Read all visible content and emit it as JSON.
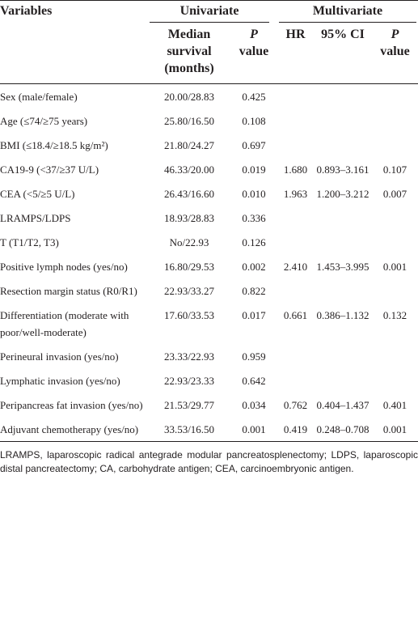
{
  "header": {
    "variables": "Variables",
    "univariate": "Univariate",
    "multivariate": "Multivariate",
    "columns": [
      {
        "text": "Median survival (months)"
      },
      {
        "italic": "P",
        "text": "value"
      },
      {
        "text": "HR"
      },
      {
        "text": "95% CI"
      },
      {
        "italic": "P",
        "text": "value"
      }
    ]
  },
  "table": {
    "rows": [
      [
        "Sex (male/female)",
        "20.00/28.83",
        "0.425",
        null,
        null,
        null
      ],
      [
        "Age (≤74/≥75 years)",
        "25.80/16.50",
        "0.108",
        null,
        null,
        null
      ],
      [
        "BMI (≤18.4/≥18.5 kg/m²)",
        "21.80/24.27",
        "0.697",
        null,
        null,
        null
      ],
      [
        "CA19-9 (<37/≥37 U/L)",
        "46.33/20.00",
        "0.019",
        "1.680",
        "0.893–3.161",
        "0.107"
      ],
      [
        "CEA (<5/≥5 U/L)",
        "26.43/16.60",
        "0.010",
        "1.963",
        "1.200–3.212",
        "0.007"
      ],
      [
        "LRAMPS/LDPS",
        "18.93/28.83",
        "0.336",
        null,
        null,
        null
      ],
      [
        "T (T1/T2, T3)",
        "No/22.93",
        "0.126",
        null,
        null,
        null
      ],
      [
        "Positive lymph nodes (yes/no)",
        "16.80/29.53",
        "0.002",
        "2.410",
        "1.453–3.995",
        "0.001"
      ],
      [
        "Resection margin status (R0/R1)",
        "22.93/33.27",
        "0.822",
        null,
        null,
        null
      ],
      [
        "Differentiation (moderate with poor/well-moderate)",
        "17.60/33.53",
        "0.017",
        "0.661",
        "0.386–1.132",
        "0.132"
      ],
      [
        "Perineural invasion (yes/no)",
        "23.33/22.93",
        "0.959",
        null,
        null,
        null
      ],
      [
        "Lymphatic invasion (yes/no)",
        "22.93/23.33",
        "0.642",
        null,
        null,
        null
      ],
      [
        "Peripancreas fat invasion (yes/no)",
        "21.53/29.77",
        "0.034",
        "0.762",
        "0.404–1.437",
        "0.401"
      ],
      [
        "Adjuvant chemotherapy (yes/no)",
        "33.53/16.50",
        "0.001",
        "0.419",
        "0.248–0.708",
        "0.001"
      ]
    ]
  },
  "footnote": "LRAMPS, laparoscopic radical antegrade modular pancreatosplenectomy; LDPS, laparoscopic distal pancreatectomy; CA, carbohydrate antigen; CEA, carcinoembryonic antigen."
}
